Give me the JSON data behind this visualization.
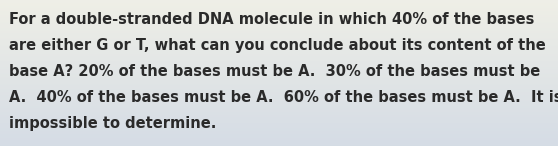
{
  "text_color": "#2a2a2a",
  "background_top": "#eeeee6",
  "background_bottom": "#dde4ea",
  "font_size": 10.5,
  "fig_width": 5.58,
  "fig_height": 1.46,
  "line1": "For a double-stranded DNA molecule in which 40% of the bases",
  "line2": "are either G or T, what can you conclude about its content of the",
  "line3": "base A? 20% of the bases must be A.  30% of the bases must be",
  "line4": "A.  40% of the bases must be A.  60% of the bases must be A.  It is",
  "line5": "impossible to determine."
}
